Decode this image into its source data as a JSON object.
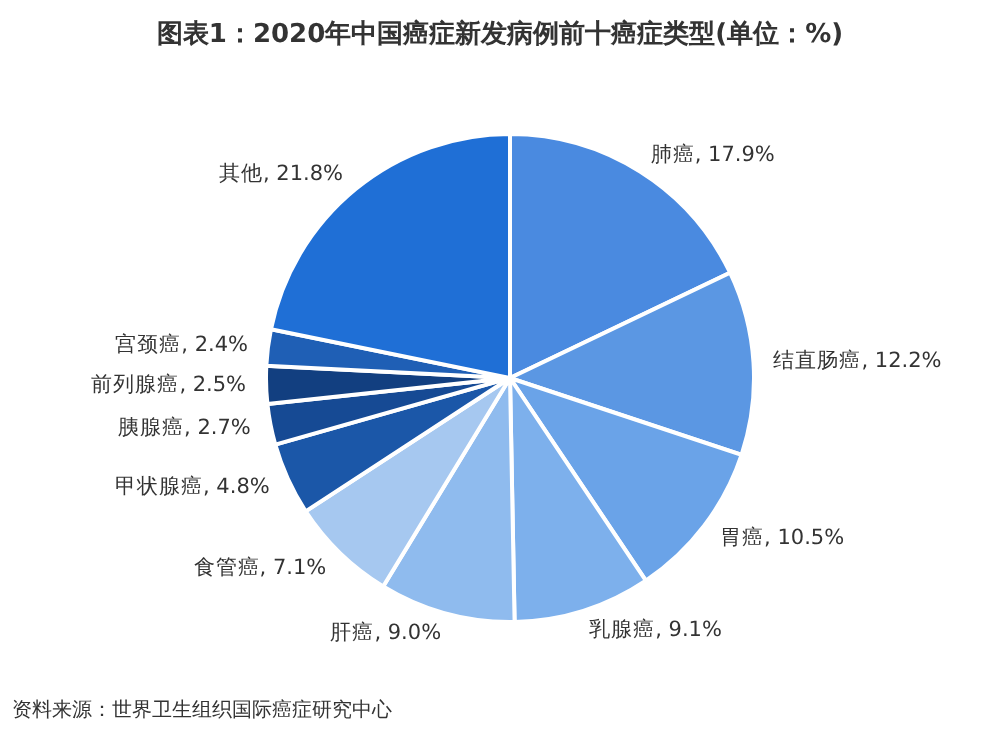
{
  "chart_data": {
    "type": "pie",
    "title": "图表1：2020年中国癌症新发病例前十癌症类型(单位：%)",
    "categories": [
      "肺癌",
      "结直肠癌",
      "胃癌",
      "乳腺癌",
      "肝癌",
      "食管癌",
      "甲状腺癌",
      "胰腺癌",
      "前列腺癌",
      "宫颈癌",
      "其他"
    ],
    "values": [
      17.9,
      12.2,
      10.5,
      9.1,
      9.0,
      7.1,
      4.8,
      2.7,
      2.5,
      2.4,
      21.8
    ],
    "value_labels": [
      "17.9%",
      "12.2%",
      "10.5%",
      "9.1%",
      "9.0%",
      "7.1%",
      "4.8%",
      "2.7%",
      "2.5%",
      "2.4%",
      "21.8%"
    ],
    "colors": [
      "#4a8ae0",
      "#5b97e3",
      "#6aa3e8",
      "#7db0ec",
      "#8fbbee",
      "#a6c8f0",
      "#1b57a8",
      "#164a94",
      "#123f80",
      "#1f5fb5",
      "#1f6fd6"
    ],
    "legend": false,
    "annotations": [
      "资料来源：世界卫生组织国际癌症研究中心"
    ]
  }
}
